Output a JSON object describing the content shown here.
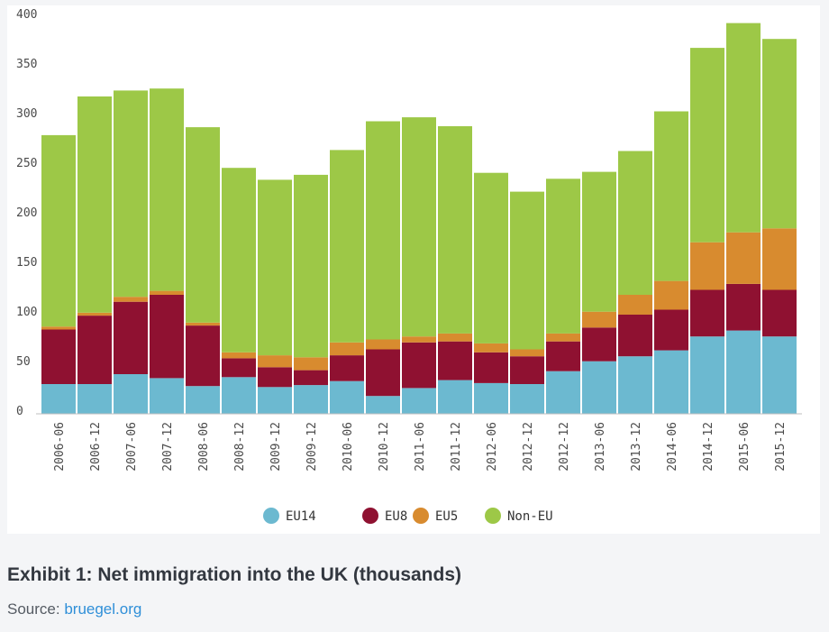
{
  "caption": {
    "title": "Exhibit 1: Net immigration into the UK (thousands)",
    "source_prefix": "Source:",
    "source_link": "bruegel.org"
  },
  "chart_data": {
    "type": "bar",
    "stacked": true,
    "categories": [
      "2006-06",
      "2006-12",
      "2007-06",
      "2007-12",
      "2008-06",
      "2008-12",
      "2009-12",
      "2009-12",
      "2010-06",
      "2010-12",
      "2011-06",
      "2011-12",
      "2012-06",
      "2012-12",
      "2012-12",
      "2013-06",
      "2013-12",
      "2014-06",
      "2014-12",
      "2015-06",
      "2015-12"
    ],
    "series": [
      {
        "name": "EU14",
        "color": "#6cb9d0",
        "values": [
          30,
          30,
          40,
          36,
          28,
          37,
          27,
          29,
          33,
          18,
          26,
          34,
          31,
          30,
          43,
          53,
          58,
          64,
          78,
          84,
          78
        ]
      },
      {
        "name": "EU8",
        "color": "#8f1131",
        "values": [
          55,
          69,
          73,
          84,
          61,
          19,
          20,
          15,
          26,
          47,
          46,
          39,
          31,
          28,
          30,
          34,
          42,
          41,
          47,
          47,
          47
        ]
      },
      {
        "name": "EU5",
        "color": "#d88b2f",
        "values": [
          3,
          3,
          5,
          4,
          3,
          6,
          12,
          13,
          13,
          10,
          6,
          8,
          9,
          7,
          8,
          16,
          20,
          29,
          48,
          52,
          62
        ]
      },
      {
        "name": "Non-EU",
        "color": "#9dc847",
        "values": [
          193,
          218,
          208,
          204,
          197,
          186,
          177,
          184,
          194,
          220,
          221,
          209,
          172,
          159,
          156,
          141,
          145,
          171,
          196,
          211,
          191
        ]
      }
    ],
    "ylim": [
      0,
      400
    ],
    "yticks": [
      0,
      50,
      100,
      150,
      200,
      250,
      300,
      350,
      400
    ],
    "grid": false,
    "legend": "bottom-center"
  }
}
